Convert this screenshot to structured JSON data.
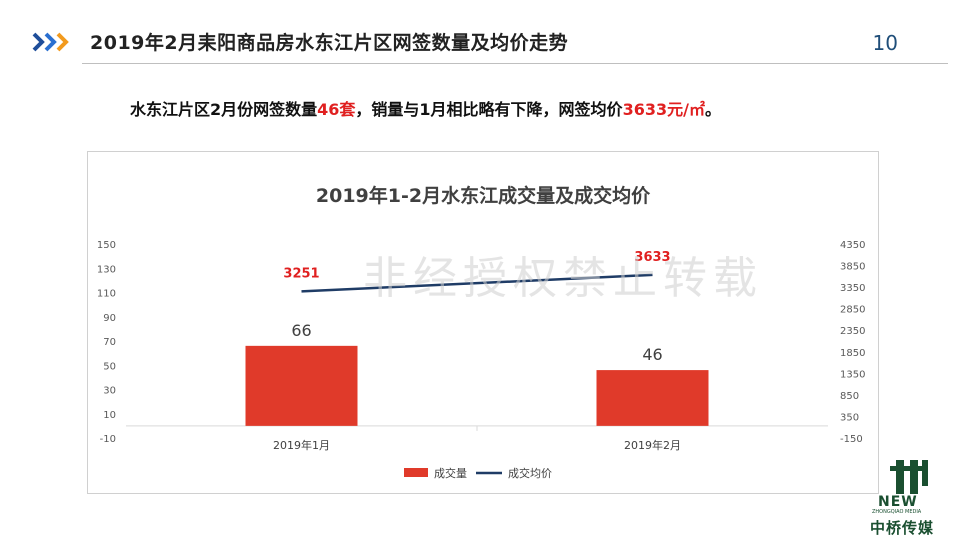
{
  "header": {
    "title": "2019年2月耒阳商品房水东江片区网签数量及均价走势",
    "page_number": "10"
  },
  "summary": {
    "part1": "水东江片区2月份网签数量",
    "count": "46套",
    "part2": "，销量与1月相比略有下降，网签均价",
    "price": "3633元/㎡",
    "part3": "。"
  },
  "watermark": "非经授权禁止转载",
  "logo": {
    "new": "NEW",
    "sub": "ZHONGQIAO MEDIA",
    "cn": "中桥传媒"
  },
  "colors": {
    "bar": "#e03a2a",
    "line": "#1f3c66",
    "accent_red": "#e02020"
  },
  "chart_data": {
    "type": "bar+line",
    "title": "2019年1-2月水东江成交量及成交均价",
    "categories": [
      "2019年1月",
      "2019年2月"
    ],
    "series": [
      {
        "name": "成交量",
        "type": "bar",
        "axis": "left",
        "values": [
          66,
          46
        ]
      },
      {
        "name": "成交均价",
        "type": "line",
        "axis": "right",
        "values": [
          3251,
          3633
        ]
      }
    ],
    "y_left": {
      "min": -10,
      "max": 150,
      "ticks": [
        -10,
        10,
        30,
        50,
        70,
        90,
        110,
        130,
        150
      ]
    },
    "y_right": {
      "min": -150,
      "max": 4350,
      "ticks": [
        -150,
        350,
        850,
        1350,
        1850,
        2350,
        2850,
        3350,
        3850,
        4350
      ]
    },
    "legend_position": "bottom",
    "grid": false
  }
}
